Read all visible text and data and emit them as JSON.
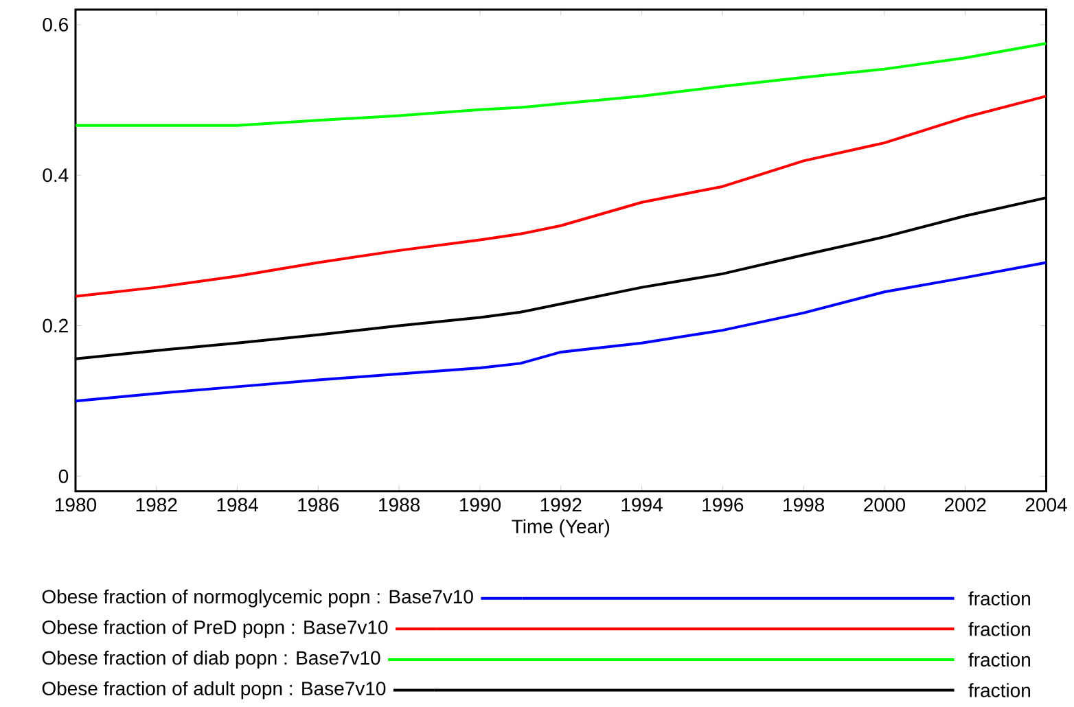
{
  "chart_data": {
    "type": "line",
    "xlabel": "Time (Year)",
    "x": [
      1980,
      1982,
      1984,
      1986,
      1988,
      1990,
      1991,
      1992,
      1994,
      1996,
      1998,
      2000,
      2002,
      2004
    ],
    "series": [
      {
        "name": "Obese fraction of normoglycemic popn : Base7v10",
        "color": "#0000ff",
        "values": [
          0.1,
          0.11,
          0.119,
          0.128,
          0.136,
          0.144,
          0.15,
          0.165,
          0.177,
          0.194,
          0.217,
          0.245,
          0.264,
          0.284
        ]
      },
      {
        "name": "Obese fraction of PreD popn : Base7v10",
        "color": "#ff0000",
        "values": [
          0.239,
          0.251,
          0.266,
          0.284,
          0.3,
          0.314,
          0.322,
          0.333,
          0.364,
          0.385,
          0.419,
          0.443,
          0.477,
          0.505
        ]
      },
      {
        "name": "Obese fraction of diab popn : Base7v10",
        "color": "#00ff00",
        "values": [
          0.466,
          0.466,
          0.466,
          0.473,
          0.479,
          0.487,
          0.49,
          0.495,
          0.505,
          0.518,
          0.53,
          0.541,
          0.556,
          0.575
        ]
      },
      {
        "name": "Obese fraction of adult popn : Base7v10",
        "color": "#000000",
        "values": [
          0.156,
          0.167,
          0.177,
          0.188,
          0.2,
          0.211,
          0.218,
          0.229,
          0.251,
          0.269,
          0.294,
          0.318,
          0.346,
          0.37
        ]
      }
    ],
    "xlim": [
      1980,
      2004
    ],
    "xticks": [
      1980,
      1982,
      1984,
      1986,
      1988,
      1990,
      1992,
      1994,
      1996,
      1998,
      2000,
      2002,
      2004
    ],
    "ylim": [
      -0.02,
      0.62
    ],
    "yticks": [
      0,
      0.2,
      0.4,
      0.6
    ],
    "legend": "bottom",
    "grid": false,
    "annotations": [
      "fraction",
      "fraction",
      "fraction",
      "fraction"
    ]
  }
}
